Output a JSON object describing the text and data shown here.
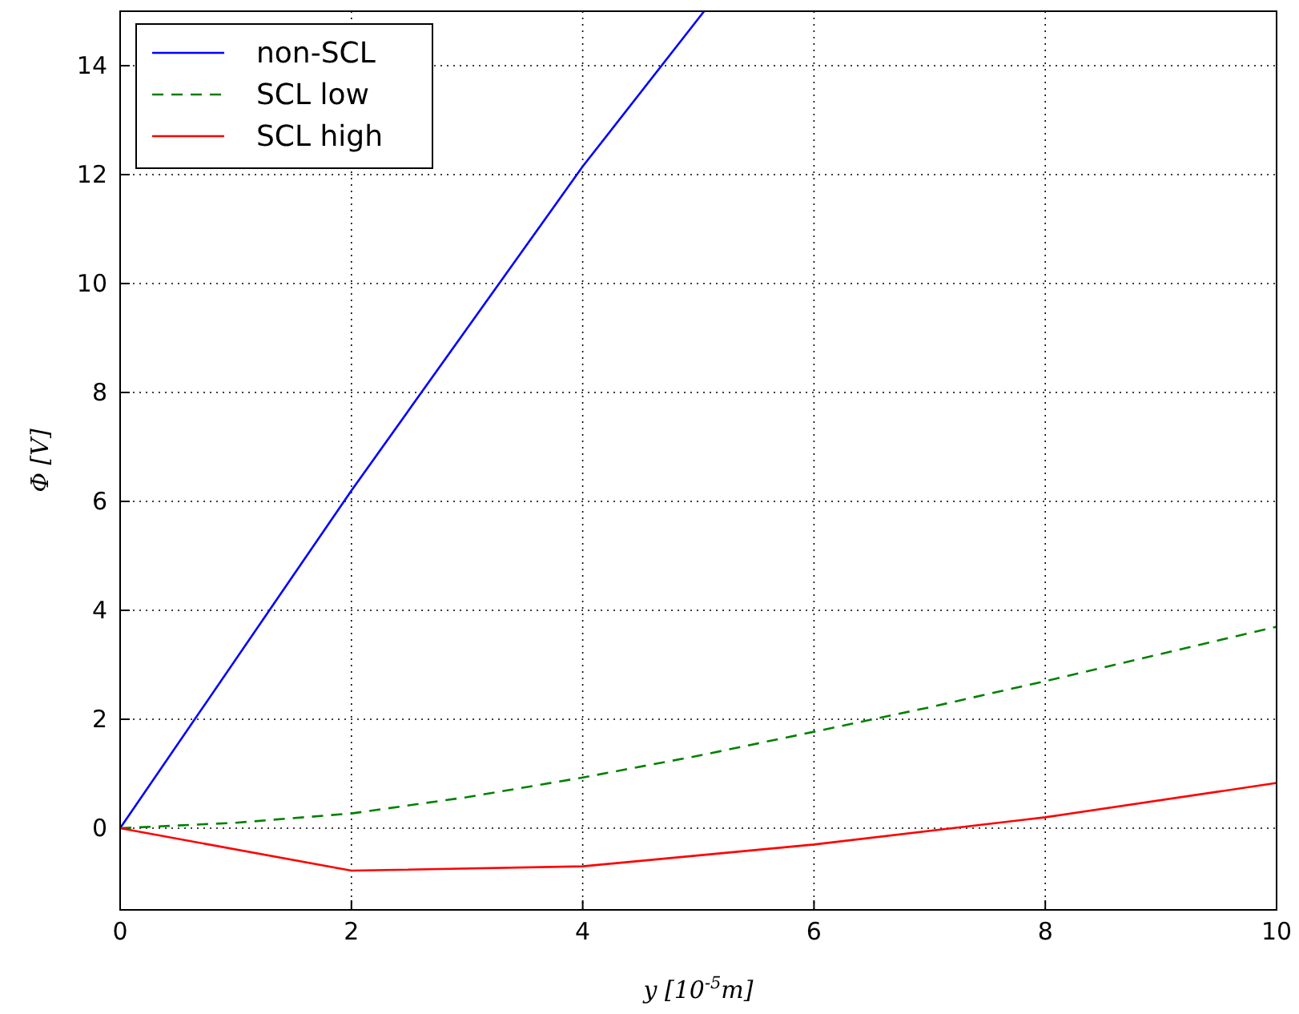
{
  "chart_data": {
    "type": "line",
    "xlabel": "y [10$^{-5}$m]",
    "ylabel": "Φ [V]",
    "xlim": [
      0,
      10
    ],
    "ylim": [
      -1.5,
      15
    ],
    "xticks": [
      0,
      2,
      4,
      6,
      8,
      10
    ],
    "yticks": [
      0,
      2,
      4,
      6,
      8,
      10,
      12,
      14
    ],
    "grid": true,
    "legend": "top left",
    "series": [
      {
        "name": "non-SCL",
        "color": "#0000ff",
        "line_style": "solid",
        "x": [
          0,
          2,
          4,
          5.05
        ],
        "values": [
          0,
          6.2,
          12.15,
          15
        ]
      },
      {
        "name": "SCL low",
        "color": "#008000",
        "line_style": "dashed",
        "x": [
          0,
          1,
          2,
          3,
          4,
          5,
          6,
          7,
          8,
          9,
          10
        ],
        "values": [
          0,
          0.1,
          0.27,
          0.57,
          0.93,
          1.33,
          1.77,
          2.22,
          2.7,
          3.2,
          3.7
        ]
      },
      {
        "name": "SCL high",
        "color": "#ff0000",
        "line_style": "solid",
        "x": [
          0,
          2,
          4,
          6,
          8,
          10
        ],
        "values": [
          0,
          -0.78,
          -0.7,
          -0.3,
          0.2,
          0.83
        ]
      }
    ]
  }
}
